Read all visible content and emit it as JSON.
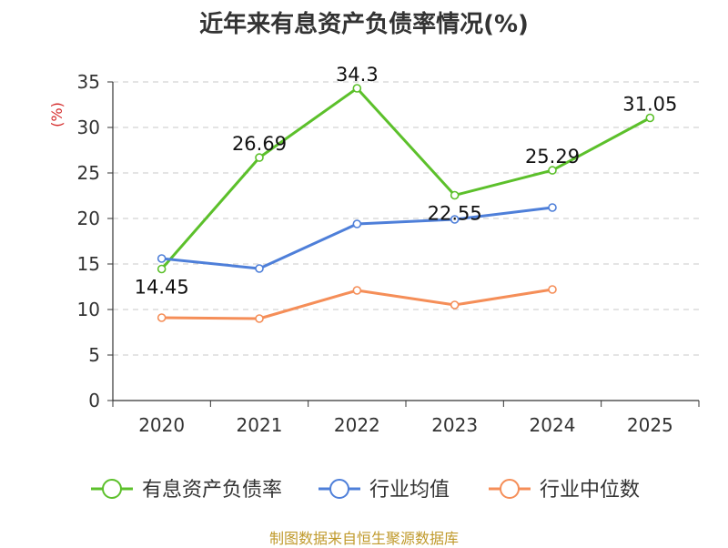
{
  "title": "近年来有息资产负债率情况(%)",
  "source": "制图数据来自恒生聚源数据库",
  "chart_data": {
    "type": "line",
    "ylabel": "(%)",
    "ylim": [
      0,
      35
    ],
    "yticks": [
      0,
      5,
      10,
      15,
      20,
      25,
      30,
      35
    ],
    "grid": true,
    "legend_position": "bottom",
    "categories": [
      "2020",
      "2021",
      "2022",
      "2023",
      "2024",
      "2025"
    ],
    "series": [
      {
        "name": "有息资产负债率",
        "color": "#5cc02b",
        "show_labels": true,
        "values": [
          14.45,
          26.69,
          34.3,
          22.55,
          25.29,
          31.05
        ],
        "labels": [
          "14.45",
          "26.69",
          "34.3",
          "22.55",
          "25.29",
          "31.05"
        ]
      },
      {
        "name": "行业均值",
        "color": "#4e7fd9",
        "show_labels": false,
        "values": [
          15.6,
          14.5,
          19.4,
          19.9,
          21.2,
          null
        ]
      },
      {
        "name": "行业中位数",
        "color": "#f58e58",
        "show_labels": false,
        "values": [
          9.1,
          9.0,
          12.1,
          10.5,
          12.2,
          null
        ]
      }
    ]
  }
}
